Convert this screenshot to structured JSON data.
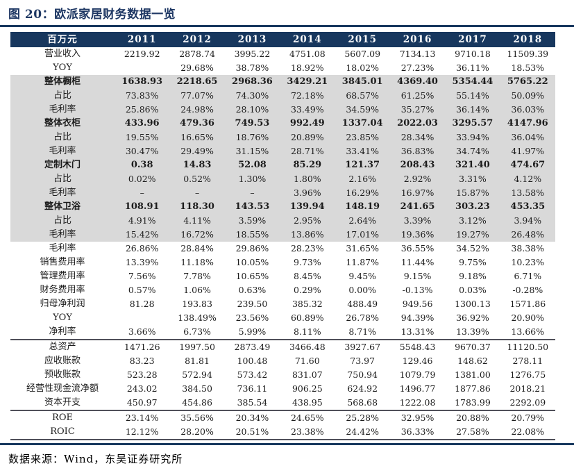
{
  "title": "图 20：欧派家居财务数据一览",
  "footer": "数据来源：Wind，东吴证券研究所",
  "colors": {
    "header_bg": "#17375E",
    "shaded_block_bg": "#D9D9D9",
    "title_color": "#1F3864",
    "rule_color": "#17375E"
  },
  "chart_data": {
    "type": "table",
    "title": "欧派家居财务数据一览",
    "unit": "百万元",
    "columns": [
      "百万元",
      "2011",
      "2012",
      "2013",
      "2014",
      "2015",
      "2016",
      "2017",
      "2018"
    ],
    "rows": [
      {
        "label": "营业收入",
        "bold": false,
        "shaded": false,
        "rule_top": false,
        "values": [
          "2219.92",
          "2878.74",
          "3995.22",
          "4751.08",
          "5607.09",
          "7134.13",
          "9710.18",
          "11509.39"
        ]
      },
      {
        "label": "YOY",
        "bold": false,
        "shaded": false,
        "rule_top": false,
        "values": [
          "",
          "29.68%",
          "38.78%",
          "18.92%",
          "18.02%",
          "27.23%",
          "36.11%",
          "18.53%"
        ]
      },
      {
        "label": "整体橱柜",
        "bold": true,
        "shaded": true,
        "rule_top": false,
        "values": [
          "1638.93",
          "2218.65",
          "2968.36",
          "3429.21",
          "3845.01",
          "4369.40",
          "5354.44",
          "5765.22"
        ]
      },
      {
        "label": "占比",
        "bold": false,
        "shaded": true,
        "rule_top": false,
        "values": [
          "73.83%",
          "77.07%",
          "74.30%",
          "72.18%",
          "68.57%",
          "61.25%",
          "55.14%",
          "50.09%"
        ]
      },
      {
        "label": "毛利率",
        "bold": false,
        "shaded": true,
        "rule_top": false,
        "values": [
          "25.86%",
          "24.98%",
          "28.10%",
          "33.49%",
          "34.59%",
          "35.27%",
          "36.14%",
          "36.03%"
        ]
      },
      {
        "label": "整体衣柜",
        "bold": true,
        "shaded": true,
        "rule_top": false,
        "values": [
          "433.96",
          "479.36",
          "749.53",
          "992.49",
          "1337.04",
          "2022.03",
          "3295.57",
          "4147.96"
        ]
      },
      {
        "label": "占比",
        "bold": false,
        "shaded": true,
        "rule_top": false,
        "values": [
          "19.55%",
          "16.65%",
          "18.76%",
          "20.89%",
          "23.85%",
          "28.34%",
          "33.94%",
          "36.04%"
        ]
      },
      {
        "label": "毛利率",
        "bold": false,
        "shaded": true,
        "rule_top": false,
        "values": [
          "30.47%",
          "29.49%",
          "31.15%",
          "28.71%",
          "33.41%",
          "36.83%",
          "34.74%",
          "41.97%"
        ]
      },
      {
        "label": "定制木门",
        "bold": true,
        "shaded": true,
        "rule_top": false,
        "values": [
          "0.38",
          "14.83",
          "52.08",
          "85.29",
          "121.37",
          "208.43",
          "321.40",
          "474.67"
        ]
      },
      {
        "label": "占比",
        "bold": false,
        "shaded": true,
        "rule_top": false,
        "values": [
          "0.02%",
          "0.52%",
          "1.30%",
          "1.80%",
          "2.16%",
          "2.92%",
          "3.31%",
          "4.12%"
        ]
      },
      {
        "label": "毛利率",
        "bold": false,
        "shaded": true,
        "rule_top": false,
        "values": [
          "–",
          "–",
          "–",
          "3.96%",
          "16.29%",
          "16.97%",
          "15.87%",
          "13.58%"
        ]
      },
      {
        "label": "整体卫浴",
        "bold": true,
        "shaded": true,
        "rule_top": false,
        "values": [
          "108.91",
          "118.30",
          "143.53",
          "139.94",
          "148.19",
          "241.65",
          "303.23",
          "453.35"
        ]
      },
      {
        "label": "占比",
        "bold": false,
        "shaded": true,
        "rule_top": false,
        "values": [
          "4.91%",
          "4.11%",
          "3.59%",
          "2.95%",
          "2.64%",
          "3.39%",
          "3.12%",
          "3.94%"
        ]
      },
      {
        "label": "毛利率",
        "bold": false,
        "shaded": true,
        "rule_top": false,
        "values": [
          "15.42%",
          "16.72%",
          "18.55%",
          "13.86%",
          "17.01%",
          "19.36%",
          "19.27%",
          "26.48%"
        ]
      },
      {
        "label": "毛利率",
        "bold": false,
        "shaded": false,
        "rule_top": false,
        "values": [
          "26.86%",
          "28.84%",
          "29.86%",
          "28.23%",
          "31.65%",
          "36.55%",
          "34.52%",
          "38.38%"
        ]
      },
      {
        "label": "销售费用率",
        "bold": false,
        "shaded": false,
        "rule_top": false,
        "values": [
          "13.39%",
          "11.18%",
          "10.05%",
          "9.73%",
          "11.87%",
          "11.44%",
          "9.75%",
          "10.23%"
        ]
      },
      {
        "label": "管理费用率",
        "bold": false,
        "shaded": false,
        "rule_top": false,
        "values": [
          "7.56%",
          "7.78%",
          "10.65%",
          "8.45%",
          "9.45%",
          "9.15%",
          "9.18%",
          "6.71%"
        ]
      },
      {
        "label": "财务费用率",
        "bold": false,
        "shaded": false,
        "rule_top": false,
        "values": [
          "0.57%",
          "1.06%",
          "0.63%",
          "0.29%",
          "0.00%",
          "-0.13%",
          "0.03%",
          "-0.28%"
        ]
      },
      {
        "label": "归母净利润",
        "bold": false,
        "shaded": false,
        "rule_top": false,
        "values": [
          "81.28",
          "193.83",
          "239.50",
          "385.32",
          "488.49",
          "949.56",
          "1300.13",
          "1571.86"
        ]
      },
      {
        "label": "YOY",
        "bold": false,
        "shaded": false,
        "rule_top": false,
        "values": [
          "",
          "138.49%",
          "23.56%",
          "60.89%",
          "26.78%",
          "94.39%",
          "36.92%",
          "20.90%"
        ]
      },
      {
        "label": "净利率",
        "bold": false,
        "shaded": false,
        "rule_top": false,
        "values": [
          "3.66%",
          "6.73%",
          "5.99%",
          "8.11%",
          "8.71%",
          "13.31%",
          "13.39%",
          "13.66%"
        ]
      },
      {
        "label": "总资产",
        "bold": false,
        "shaded": false,
        "rule_top": true,
        "values": [
          "1471.26",
          "1997.50",
          "2873.49",
          "3466.48",
          "3927.67",
          "5548.43",
          "9670.37",
          "11120.50"
        ]
      },
      {
        "label": "应收账款",
        "bold": false,
        "shaded": false,
        "rule_top": false,
        "values": [
          "83.23",
          "81.81",
          "100.48",
          "71.60",
          "73.97",
          "129.46",
          "148.62",
          "278.11"
        ]
      },
      {
        "label": "预收账款",
        "bold": false,
        "shaded": false,
        "rule_top": false,
        "values": [
          "523.28",
          "572.94",
          "573.42",
          "831.07",
          "750.94",
          "1079.79",
          "1381.00",
          "1276.75"
        ]
      },
      {
        "label": "经营性现金流净额",
        "bold": false,
        "shaded": false,
        "rule_top": false,
        "values": [
          "243.02",
          "384.50",
          "736.11",
          "906.25",
          "624.92",
          "1496.77",
          "1877.86",
          "2018.21"
        ]
      },
      {
        "label": "资本开支",
        "bold": false,
        "shaded": false,
        "rule_top": false,
        "values": [
          "450.97",
          "454.86",
          "385.54",
          "438.95",
          "568.68",
          "1222.08",
          "1783.99",
          "2292.09"
        ]
      },
      {
        "label": "ROE",
        "bold": false,
        "shaded": false,
        "rule_top": true,
        "values": [
          "23.14%",
          "35.56%",
          "20.34%",
          "24.65%",
          "25.28%",
          "32.95%",
          "20.88%",
          "20.79%"
        ]
      },
      {
        "label": "ROIC",
        "bold": false,
        "shaded": false,
        "rule_top": false,
        "values": [
          "12.12%",
          "28.20%",
          "20.51%",
          "23.38%",
          "24.42%",
          "36.33%",
          "27.58%",
          "22.08%"
        ]
      }
    ]
  }
}
